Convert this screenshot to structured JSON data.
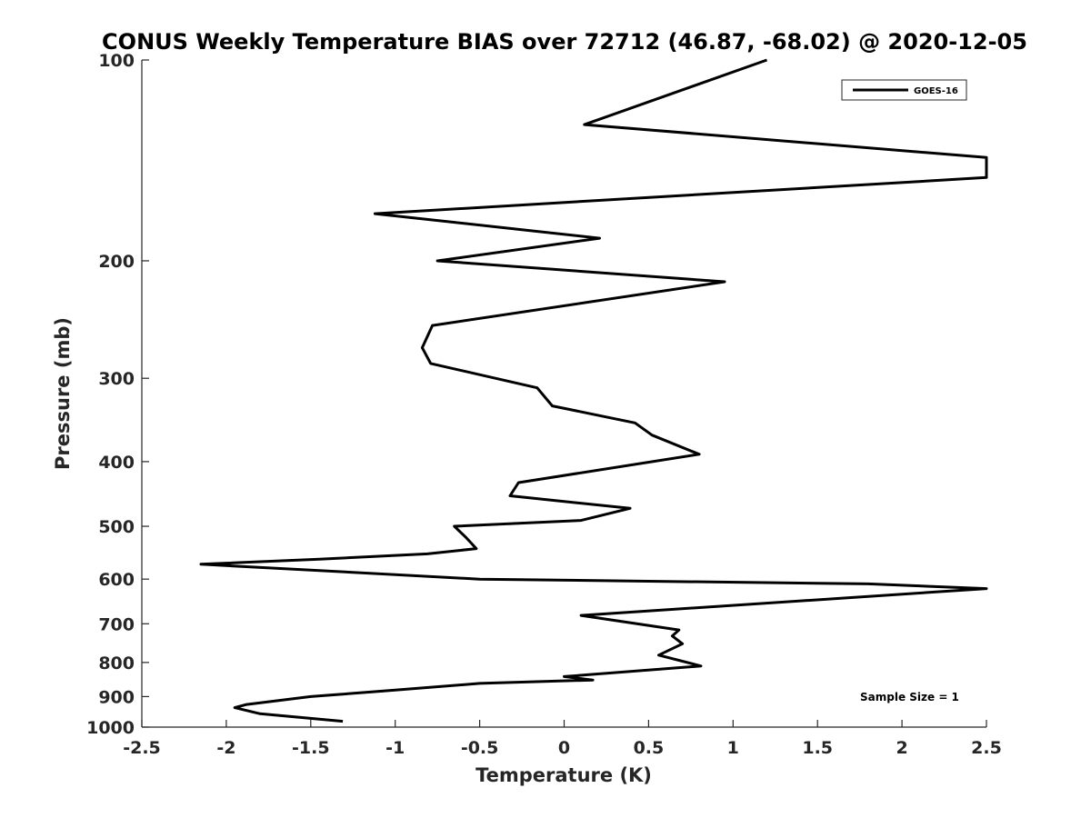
{
  "chart_data": {
    "type": "line",
    "title": "CONUS Weekly Temperature BIAS over 72712 (46.87, -68.02) @ 2020-12-05",
    "xlabel": "Temperature (K)",
    "ylabel": "Pressure (mb)",
    "xlim": [
      -2.5,
      2.5
    ],
    "ylim": [
      100,
      1000
    ],
    "y_scale": "log",
    "y_reversed": true,
    "x_ticks": [
      -2.5,
      -2,
      -1.5,
      -1,
      -0.5,
      0,
      0.5,
      1,
      1.5,
      2,
      2.5
    ],
    "x_tick_labels": [
      "-2.5",
      "-2",
      "-1.5",
      "-1",
      "-0.5",
      "0",
      "0.5",
      "1",
      "1.5",
      "2",
      "2.5"
    ],
    "y_ticks": [
      100,
      200,
      300,
      400,
      500,
      600,
      700,
      800,
      900,
      1000
    ],
    "y_tick_labels": [
      "100",
      "200",
      "300",
      "400",
      "500",
      "600",
      "700",
      "800",
      "900",
      "1000"
    ],
    "grid": false,
    "legend_position": "top-right",
    "annotation": "Sample Size = 1",
    "series": [
      {
        "name": "GOES-16",
        "color": "#000000",
        "x": [
          1.2,
          0.12,
          2.5,
          2.5,
          -1.12,
          0.21,
          -0.75,
          0.95,
          -0.78,
          -0.84,
          -0.79,
          -0.16,
          -0.07,
          0.42,
          0.52,
          0.8,
          -0.27,
          -0.32,
          0.39,
          0.1,
          -0.65,
          -0.58,
          -0.52,
          -0.81,
          -1.45,
          -2.15,
          -0.5,
          1.8,
          2.5,
          0.1,
          0.68,
          0.64,
          0.7,
          0.56,
          0.81,
          0.0,
          0.17,
          -0.5,
          -1.0,
          -1.5,
          -1.88,
          -1.95,
          -1.8,
          -1.31
        ],
        "y": [
          100,
          125,
          140,
          150,
          170,
          185,
          200,
          215,
          250,
          270,
          285,
          310,
          330,
          350,
          365,
          390,
          430,
          450,
          470,
          490,
          500,
          520,
          540,
          550,
          560,
          570,
          600,
          610,
          620,
          680,
          715,
          730,
          750,
          780,
          810,
          840,
          850,
          860,
          880,
          900,
          925,
          935,
          955,
          980
        ]
      }
    ]
  }
}
